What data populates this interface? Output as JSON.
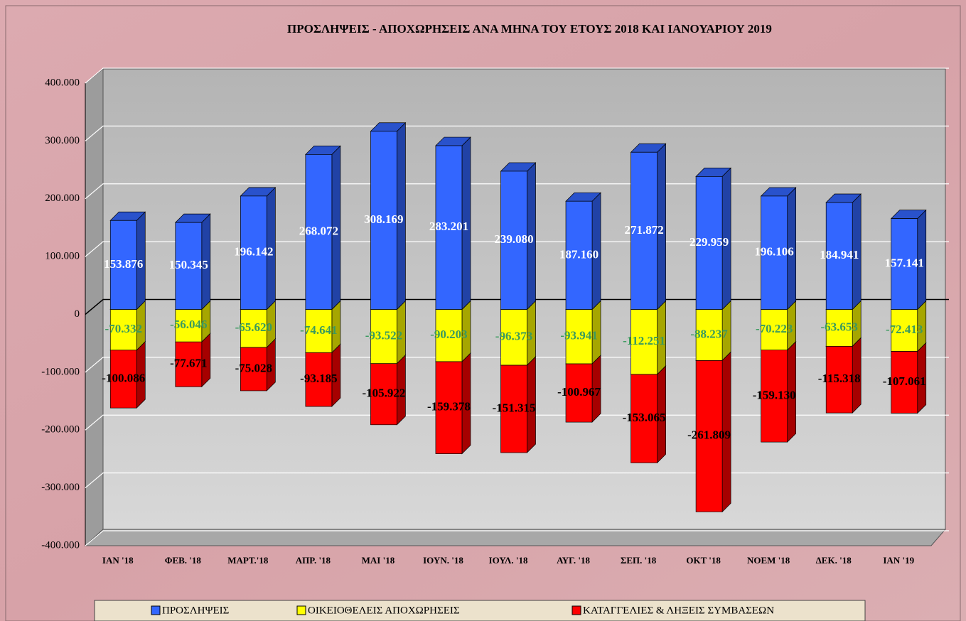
{
  "chart_data": {
    "type": "bar",
    "stacked": true,
    "title": "ΠΡΟΣΛΗΨΕΙΣ - ΑΠΟΧΩΡΗΣΕΙΣ ΑΝΑ ΜΗΝΑ ΤΟΥ ΕΤΟΥΣ 2018 ΚΑΙ ΙΑΝΟΥΑΡΙΟΥ 2019",
    "categories": [
      "ΙΑΝ '18",
      "ΦΕΒ. '18",
      "ΜΑΡΤ.'18",
      "ΑΠΡ. '18",
      "ΜΑΙ '18",
      "ΙΟΥΝ. '18",
      "ΙΟΥΛ. '18",
      "ΑΥΓ. '18",
      "ΣΕΠ. '18",
      "ΟΚΤ '18",
      "ΝΟΕΜ '18",
      "ΔΕΚ. '18",
      "ΙΑΝ '19"
    ],
    "series": [
      {
        "name": "ΠΡΟΣΛΗΨΕΙΣ",
        "color": "#3366ff",
        "label_color": "#ffffff",
        "values": [
          153876,
          150345,
          196142,
          268072,
          308169,
          283201,
          239080,
          187160,
          271872,
          229959,
          196106,
          184941,
          157141
        ],
        "value_labels": [
          "153.876",
          "150.345",
          "196.142",
          "268.072",
          "308.169",
          "283.201",
          "239.080",
          "187.160",
          "271.872",
          "229.959",
          "196.106",
          "184.941",
          "157.141"
        ]
      },
      {
        "name": "ΟΙΚΕΙΟΘΕΛΕΙΣ ΑΠΟΧΩΡΗΣΕΙΣ",
        "color": "#ffff00",
        "label_color": "#3a9a5e",
        "values": [
          -70332,
          -56046,
          -65620,
          -74641,
          -93522,
          -90203,
          -96373,
          -93941,
          -112251,
          -88237,
          -70223,
          -63653,
          -72413
        ],
        "value_labels": [
          "-70.332",
          "-56.046",
          "-65.620",
          "-74.641",
          "-93.522",
          "-90.203",
          "-96.373",
          "-93.941",
          "-112.251",
          "-88.237",
          "-70.223",
          "-63.653",
          "-72.413"
        ]
      },
      {
        "name": "ΚΑΤΑΓΓΕΛΙΕΣ & ΛΗΞΕΙΣ ΣΥΜΒΑΣΕΩΝ",
        "color": "#ff0000",
        "label_color": "#000000",
        "values": [
          -100086,
          -77671,
          -75028,
          -93185,
          -105922,
          -159378,
          -151315,
          -100967,
          -153065,
          -261809,
          -159130,
          -115318,
          -107061
        ],
        "value_labels": [
          "-100.086",
          "-77.671",
          "-75.028",
          "-93.185",
          "-105.922",
          "-159.378",
          "-151.315",
          "-100.967",
          "-153.065",
          "-261.809",
          "-159.130",
          "-115.318",
          "-107.061"
        ]
      }
    ],
    "ylim": [
      -400000,
      400000
    ],
    "yticks": [
      {
        "value": -400000,
        "label": "-400.000"
      },
      {
        "value": -300000,
        "label": "-300.000"
      },
      {
        "value": -200000,
        "label": "-200.000"
      },
      {
        "value": -100000,
        "label": "-100.000"
      },
      0,
      {
        "value": 100000,
        "label": "100.000"
      },
      {
        "value": 200000,
        "label": "200.000"
      },
      {
        "value": 300000,
        "label": "300.000"
      },
      {
        "value": 400000,
        "label": "400.000"
      }
    ],
    "grid": true,
    "legend": "bottom"
  }
}
